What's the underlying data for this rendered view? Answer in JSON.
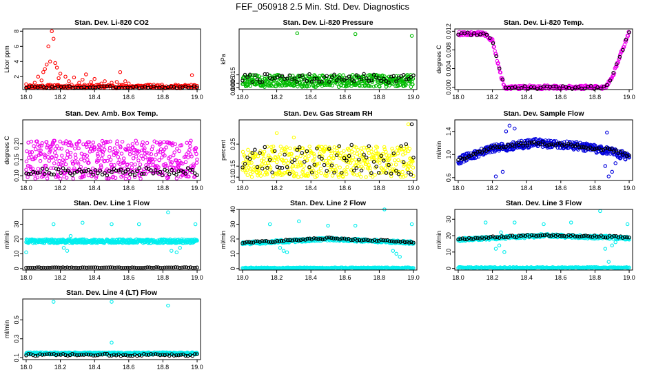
{
  "figure": {
    "title": "FEF_050918  2.5 Min. Std. Dev. Diagnostics"
  },
  "chart_data": [
    {
      "type": "scatter",
      "title": "Stan. Dev. Li-820 CO2",
      "ylabel": "Licor ppm",
      "xlim": [
        17.98,
        19.02
      ],
      "ylim": [
        0.3,
        8.3
      ],
      "xticks": [
        "18.0",
        "18.2",
        "18.4",
        "18.6",
        "18.8",
        "19.0"
      ],
      "yticks": [
        {
          "v": 2,
          "label": "2"
        },
        {
          "v": 4,
          "label": "4"
        },
        {
          "v": 6,
          "label": "6"
        },
        {
          "v": 8,
          "label": "8"
        }
      ],
      "series": [
        {
          "color": "#ff0000",
          "gen": {
            "y0": 0.7,
            "y1": 0.7,
            "amp": 0.25,
            "n": 230,
            "seed": 11
          },
          "extra": [
            [
              18.15,
              8.0
            ],
            [
              18.16,
              7.0
            ],
            [
              18.13,
              6.0
            ],
            [
              18.14,
              4.0
            ],
            [
              18.12,
              3.6
            ],
            [
              18.17,
              3.8
            ],
            [
              18.11,
              3.0
            ],
            [
              18.18,
              3.2
            ],
            [
              18.1,
              2.6
            ],
            [
              18.2,
              2.4
            ],
            [
              18.07,
              2.0
            ],
            [
              18.23,
              2.0
            ],
            [
              18.28,
              1.9
            ],
            [
              18.33,
              1.6
            ],
            [
              18.35,
              2.3
            ],
            [
              18.4,
              1.7
            ],
            [
              18.46,
              1.4
            ],
            [
              18.53,
              1.3
            ],
            [
              18.58,
              1.4
            ],
            [
              18.55,
              2.6
            ],
            [
              18.97,
              2.2
            ],
            [
              18.0,
              1.0
            ],
            [
              18.05,
              1.2
            ],
            [
              18.09,
              1.5
            ],
            [
              18.19,
              1.8
            ],
            [
              18.25,
              1.4
            ],
            [
              18.31,
              1.2
            ],
            [
              18.38,
              1.3
            ],
            [
              18.44,
              1.1
            ],
            [
              18.5,
              1.2
            ],
            [
              18.6,
              1.1
            ]
          ]
        },
        {
          "color": "#000000",
          "gen": {
            "y0": 0.6,
            "y1": 0.6,
            "amp": 0.15,
            "n": 60,
            "seed": 3
          }
        }
      ]
    },
    {
      "type": "scatter",
      "title": "Stan. Dev. Li-820 Pressure",
      "ylabel": "kPa",
      "xlim": [
        17.98,
        19.02
      ],
      "ylim": [
        -0.002,
        0.068
      ],
      "xticks": [
        "18.0",
        "18.2",
        "18.4",
        "18.6",
        "18.8",
        "19.0"
      ],
      "yticks": [
        {
          "v": 0.0,
          "label": "0.000"
        },
        {
          "v": 0.005,
          "label": "0.005"
        },
        {
          "v": 0.015,
          "label": "0.015"
        }
      ],
      "series": [
        {
          "color": "#00bb00",
          "gen": {
            "y0": 0.008,
            "y1": 0.008,
            "amp": 0.007,
            "n": 420,
            "seed": 5
          },
          "extra": [
            [
              18.32,
              0.063
            ],
            [
              18.66,
              0.062
            ],
            [
              18.99,
              0.06
            ]
          ]
        },
        {
          "color": "#000000",
          "gen": {
            "y0": 0.011,
            "y1": 0.011,
            "amp": 0.005,
            "n": 70,
            "seed": 7
          }
        }
      ]
    },
    {
      "type": "scatter",
      "title": "Stan. Dev. Li-820 Temp.",
      "ylabel": "degrees C",
      "xlim": [
        17.98,
        19.02
      ],
      "ylim": [
        -0.0005,
        0.0125
      ],
      "xticks": [
        "18.0",
        "18.2",
        "18.4",
        "18.6",
        "18.8",
        "19.0"
      ],
      "yticks": [
        {
          "v": 0.0,
          "label": "0.000"
        },
        {
          "v": 0.004,
          "label": "0.004"
        },
        {
          "v": 0.008,
          "label": "0.008"
        },
        {
          "v": 0.012,
          "label": "0.012"
        }
      ],
      "series": [
        {
          "color": "#ee00ee",
          "curve": [
            [
              18.0,
              0.0115
            ],
            [
              18.15,
              0.0115
            ],
            [
              18.2,
              0.01
            ],
            [
              18.25,
              0.0025
            ],
            [
              18.27,
              0.0
            ],
            [
              18.86,
              0.0
            ],
            [
              18.9,
              0.002
            ],
            [
              18.95,
              0.007
            ],
            [
              19.0,
              0.012
            ]
          ],
          "n": 300,
          "amp": 0.0004,
          "seed": 9
        },
        {
          "color": "#000000",
          "curve": [
            [
              18.0,
              0.0115
            ],
            [
              18.15,
              0.0115
            ],
            [
              18.2,
              0.01
            ],
            [
              18.25,
              0.0025
            ],
            [
              18.27,
              0.0
            ],
            [
              18.86,
              0.0
            ],
            [
              18.9,
              0.002
            ],
            [
              18.95,
              0.007
            ],
            [
              19.0,
              0.012
            ]
          ],
          "n": 55,
          "amp": 0.0004,
          "seed": 4
        }
      ]
    },
    {
      "type": "scatter",
      "title": "Stan. Dev. Amb. Box Temp.",
      "ylabel": "degrees C",
      "xlim": [
        17.98,
        19.02
      ],
      "ylim": [
        0.085,
        0.275
      ],
      "xticks": [
        "18.0",
        "18.2",
        "18.4",
        "18.6",
        "18.8",
        "19.0"
      ],
      "yticks": [
        {
          "v": 0.1,
          "label": "0.10"
        },
        {
          "v": 0.15,
          "label": "0.15"
        },
        {
          "v": 0.2,
          "label": "0.20"
        }
      ],
      "series": [
        {
          "color": "#ee00ee",
          "gen": {
            "y0": 0.15,
            "y1": 0.15,
            "amp": 0.06,
            "n": 470,
            "seed": 13
          }
        },
        {
          "color": "#000000",
          "gen": {
            "y0": 0.113,
            "y1": 0.113,
            "amp": 0.012,
            "n": 75,
            "seed": 21
          }
        }
      ]
    },
    {
      "type": "scatter",
      "title": "Stan. Dev. Gas Stream RH",
      "ylabel": "percent",
      "xlim": [
        17.98,
        19.02
      ],
      "ylim": [
        0.085,
        0.36
      ],
      "xticks": [
        "18.0",
        "18.2",
        "18.4",
        "18.6",
        "18.8",
        "19.0"
      ],
      "yticks": [
        {
          "v": 0.1,
          "label": "0.10"
        },
        {
          "v": 0.15,
          "label": "0.15"
        },
        {
          "v": 0.25,
          "label": "0.25"
        }
      ],
      "series": [
        {
          "color": "#ffff00",
          "gen": {
            "y0": 0.17,
            "y1": 0.17,
            "amp": 0.07,
            "n": 440,
            "seed": 17
          },
          "extra": [
            [
              18.97,
              0.34
            ],
            [
              18.3,
              0.28
            ],
            [
              18.2,
              0.3
            ]
          ]
        },
        {
          "color": "#000000",
          "gen": {
            "y0": 0.18,
            "y1": 0.18,
            "amp": 0.07,
            "n": 70,
            "seed": 23
          },
          "extra": [
            [
              18.99,
              0.34
            ]
          ]
        }
      ]
    },
    {
      "type": "scatter",
      "title": "Stan. Dev. Sample Flow",
      "ylabel": "ml/min",
      "xlim": [
        17.98,
        19.02
      ],
      "ylim": [
        0.55,
        1.6
      ],
      "xticks": [
        "18.0",
        "18.2",
        "18.4",
        "18.6",
        "18.8",
        "19.0"
      ],
      "yticks": [
        {
          "v": 0.6,
          "label": "0.6"
        },
        {
          "v": 1.0,
          "label": "1.0"
        },
        {
          "v": 1.4,
          "label": "1.4"
        }
      ],
      "series": [
        {
          "color": "#0000dd",
          "curve": [
            [
              18.0,
              0.9
            ],
            [
              18.2,
              1.1
            ],
            [
              18.45,
              1.2
            ],
            [
              18.7,
              1.15
            ],
            [
              18.9,
              1.05
            ],
            [
              19.0,
              0.95
            ]
          ],
          "n": 420,
          "amp": 0.07,
          "seed": 31,
          "extra": [
            [
              18.22,
              0.62
            ],
            [
              18.26,
              0.7
            ],
            [
              18.3,
              1.5
            ],
            [
              18.28,
              1.4
            ],
            [
              18.33,
              1.45
            ],
            [
              18.87,
              1.38
            ],
            [
              18.88,
              0.62
            ],
            [
              18.9,
              0.7
            ],
            [
              18.86,
              0.8
            ],
            [
              18.92,
              0.85
            ]
          ]
        },
        {
          "color": "#000000",
          "curve": [
            [
              18.0,
              0.92
            ],
            [
              18.2,
              1.12
            ],
            [
              18.45,
              1.2
            ],
            [
              18.7,
              1.15
            ],
            [
              18.9,
              1.07
            ],
            [
              19.0,
              0.98
            ]
          ],
          "n": 80,
          "amp": 0.03,
          "seed": 37
        }
      ]
    },
    {
      "type": "scatter",
      "title": "Stan. Dev. Line 1 Flow",
      "ylabel": "ml/min",
      "xlim": [
        17.98,
        19.02
      ],
      "ylim": [
        -1,
        40
      ],
      "xticks": [
        "18.0",
        "18.2",
        "18.4",
        "18.6",
        "18.8",
        "19.0"
      ],
      "yticks": [
        {
          "v": 0,
          "label": "0"
        },
        {
          "v": 10,
          "label": "10"
        },
        {
          "v": 20,
          "label": "20"
        },
        {
          "v": 30,
          "label": "30"
        }
      ],
      "series": [
        {
          "color": "#00eeee",
          "gen": {
            "y0": 18.5,
            "y1": 18.5,
            "amp": 1.3,
            "n": 470,
            "seed": 41
          },
          "extra": [
            [
              18.16,
              30
            ],
            [
              18.33,
              31
            ],
            [
              18.5,
              30
            ],
            [
              18.66,
              30
            ],
            [
              18.83,
              38
            ],
            [
              18.99,
              30
            ],
            [
              18.0,
              11
            ],
            [
              18.24,
              12
            ],
            [
              18.22,
              14
            ],
            [
              18.26,
              22
            ],
            [
              18.85,
              12
            ],
            [
              18.88,
              11
            ],
            [
              18.9,
              14
            ]
          ]
        },
        {
          "color": "#000000",
          "gen": {
            "y0": 0.7,
            "y1": 0.7,
            "amp": 0.2,
            "n": 80,
            "seed": 43
          }
        }
      ]
    },
    {
      "type": "scatter",
      "title": "Stan. Dev. Line 2 Flow",
      "ylabel": "ml/min",
      "xlim": [
        17.98,
        19.02
      ],
      "ylim": [
        -1,
        40
      ],
      "xticks": [
        "18.0",
        "18.2",
        "18.4",
        "18.6",
        "18.8",
        "19.0"
      ],
      "yticks": [
        {
          "v": 0,
          "label": "0"
        },
        {
          "v": 10,
          "label": "10"
        },
        {
          "v": 20,
          "label": "20"
        },
        {
          "v": 30,
          "label": "30"
        },
        {
          "v": 40,
          "label": "40"
        }
      ],
      "series": [
        {
          "color": "#00eeee",
          "curve": [
            [
              18.0,
              17
            ],
            [
              18.5,
              20
            ],
            [
              19.0,
              17.5
            ]
          ],
          "n": 380,
          "amp": 1.0,
          "seed": 51,
          "extra": [
            [
              18.16,
              30
            ],
            [
              18.33,
              32
            ],
            [
              18.5,
              29
            ],
            [
              18.66,
              29
            ],
            [
              18.83,
              40
            ],
            [
              18.99,
              30
            ],
            [
              18.24,
              12
            ],
            [
              18.22,
              14
            ],
            [
              18.26,
              11
            ],
            [
              18.88,
              12
            ],
            [
              18.9,
              10
            ],
            [
              18.92,
              8
            ]
          ]
        },
        {
          "color": "#00eeee",
          "gen": {
            "y0": 0.5,
            "y1": 0.5,
            "amp": 0.3,
            "n": 200,
            "seed": 53
          }
        },
        {
          "color": "#000000",
          "curve": [
            [
              18.0,
              17.5
            ],
            [
              18.5,
              20.5
            ],
            [
              19.0,
              18
            ]
          ],
          "n": 80,
          "amp": 0.6,
          "seed": 57
        }
      ]
    },
    {
      "type": "scatter",
      "title": "Stan. Dev. Line 3 Flow",
      "ylabel": "ml/min",
      "xlim": [
        17.98,
        19.02
      ],
      "ylim": [
        -1,
        36
      ],
      "xticks": [
        "18.0",
        "18.2",
        "18.4",
        "18.6",
        "18.8",
        "19.0"
      ],
      "yticks": [
        {
          "v": 0,
          "label": "0"
        },
        {
          "v": 10,
          "label": "10"
        },
        {
          "v": 20,
          "label": "20"
        },
        {
          "v": 30,
          "label": "30"
        }
      ],
      "series": [
        {
          "color": "#00eeee",
          "curve": [
            [
              18.0,
              17.5
            ],
            [
              18.5,
              20
            ],
            [
              19.0,
              18.5
            ]
          ],
          "n": 380,
          "amp": 1.0,
          "seed": 61,
          "extra": [
            [
              18.16,
              28
            ],
            [
              18.33,
              28
            ],
            [
              18.5,
              27
            ],
            [
              18.66,
              28
            ],
            [
              18.83,
              35
            ],
            [
              18.99,
              27
            ],
            [
              18.24,
              14
            ],
            [
              18.22,
              12
            ],
            [
              18.27,
              10
            ],
            [
              18.25,
              22
            ],
            [
              18.88,
              4
            ],
            [
              18.86,
              12
            ],
            [
              18.9,
              14
            ],
            [
              18.92,
              16
            ]
          ]
        },
        {
          "color": "#00eeee",
          "gen": {
            "y0": 0.5,
            "y1": 0.5,
            "amp": 0.3,
            "n": 200,
            "seed": 63
          }
        },
        {
          "color": "#000000",
          "curve": [
            [
              18.0,
              18
            ],
            [
              18.5,
              20.5
            ],
            [
              19.0,
              19
            ]
          ],
          "n": 80,
          "amp": 0.6,
          "seed": 67
        }
      ]
    },
    {
      "type": "scatter",
      "title": "Stan. Dev. Line 4 (LT) Flow",
      "ylabel": "ml/min",
      "xlim": [
        17.98,
        19.02
      ],
      "ylim": [
        0.08,
        0.72
      ],
      "xticks": [
        "18.0",
        "18.2",
        "18.4",
        "18.6",
        "18.8",
        "19.0"
      ],
      "yticks": [
        {
          "v": 0.1,
          "label": "0.1"
        },
        {
          "v": 0.3,
          "label": "0.3"
        },
        {
          "v": 0.5,
          "label": "0.5"
        }
      ],
      "series": [
        {
          "color": "#00eeee",
          "gen": {
            "y0": 0.145,
            "y1": 0.145,
            "amp": 0.012,
            "n": 470,
            "seed": 71
          },
          "extra": [
            [
              18.16,
              0.69
            ],
            [
              18.5,
              0.69
            ],
            [
              18.83,
              0.65
            ],
            [
              18.5,
              0.26
            ]
          ]
        },
        {
          "color": "#000000",
          "gen": {
            "y0": 0.13,
            "y1": 0.13,
            "amp": 0.012,
            "n": 75,
            "seed": 73
          }
        }
      ]
    }
  ]
}
